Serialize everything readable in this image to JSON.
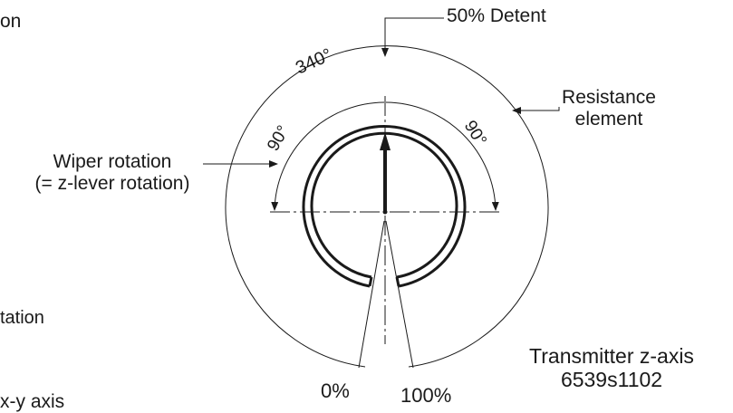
{
  "labels": {
    "detent": "50% Detent",
    "arc_total": "340°",
    "arc_left": "90°",
    "arc_right": "90°",
    "resistance_line1": "Resistance",
    "resistance_line2": "element",
    "wiper_line1": "Wiper rotation",
    "wiper_line2": "(= z-lever rotation)",
    "zero": "0%",
    "hundred": "100%",
    "title_line1": "Transmitter z-axis",
    "title_line2": "6539s1102"
  },
  "cropped_text": {
    "top_left": "on",
    "mid_left": "tation",
    "bottom_left": "x-y axis"
  },
  "colors": {
    "ink": "#1a1a1a",
    "background": "#ffffff"
  }
}
